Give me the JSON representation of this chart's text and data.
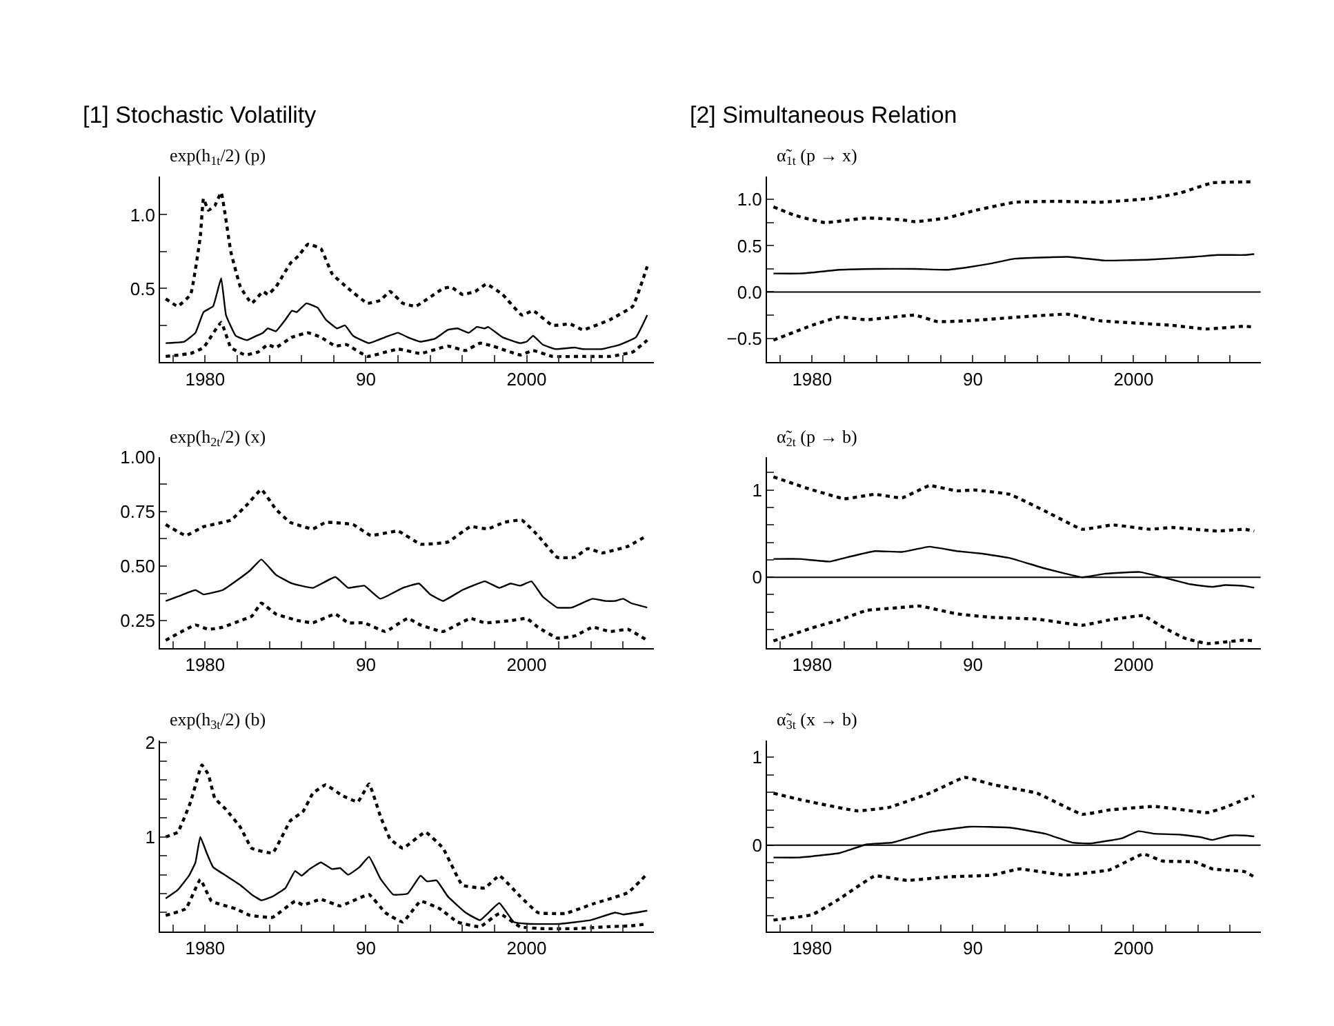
{
  "chart_data": [
    {
      "type": "line",
      "title": "[1] Stochastic Volatility",
      "ylabel": "exp(h$_{1t}$/2) (p)",
      "xlim": [
        1977.2,
        2007.9
      ],
      "xticks": [
        {
          "value": 1978,
          "label": null
        },
        1980,
        {
          "value": 1982,
          "label": null
        },
        {
          "value": 1984,
          "label": null
        },
        {
          "value": 1986,
          "label": null
        },
        {
          "value": 1988,
          "label": null
        },
        {
          "value": 1990,
          "label": "90"
        },
        {
          "value": 1992,
          "label": null
        },
        {
          "value": 1994,
          "label": null
        },
        {
          "value": 1996,
          "label": null
        },
        {
          "value": 1998,
          "label": null
        },
        2000,
        {
          "value": 2002,
          "label": null
        },
        {
          "value": 2004,
          "label": null
        },
        {
          "value": 2006,
          "label": null
        }
      ],
      "ylim": [
        0,
        1.26
      ],
      "yticks": [
        {
          "value": 0.25,
          "label": null
        },
        0.5,
        {
          "value": 0.75,
          "label": null
        },
        {
          "value": 1,
          "label": "1.0"
        }
      ],
      "grid": false,
      "series": [
        {
          "color": "#000000",
          "line_style": "solid",
          "x": [
            1977.55,
            1978.7,
            1979.4,
            1979.9,
            1980.5,
            1981.0,
            1981.3,
            1981.9,
            1982.6,
            1983.2,
            1983.6,
            1983.9,
            1984.4,
            1985.0,
            1985.4,
            1985.7,
            1986.3,
            1987.0,
            1987.5,
            1988.2,
            1988.7,
            1989.2,
            1990.2,
            1991.2,
            1992.0,
            1992.6,
            1993.4,
            1994.3,
            1995.1,
            1995.7,
            1996.4,
            1996.9,
            1997.4,
            1997.6,
            1998.5,
            1999.6,
            2000.0,
            2000.4,
            2001.0,
            2001.8,
            2003.0,
            2003.5,
            2004.7,
            2005.8,
            2006.8,
            2007.5
          ],
          "values": [
            0.13,
            0.14,
            0.2,
            0.34,
            0.38,
            0.57,
            0.32,
            0.18,
            0.15,
            0.18,
            0.2,
            0.23,
            0.21,
            0.29,
            0.35,
            0.34,
            0.4,
            0.37,
            0.29,
            0.23,
            0.25,
            0.18,
            0.13,
            0.17,
            0.2,
            0.17,
            0.14,
            0.16,
            0.22,
            0.23,
            0.2,
            0.24,
            0.23,
            0.24,
            0.17,
            0.13,
            0.14,
            0.18,
            0.12,
            0.09,
            0.1,
            0.09,
            0.09,
            0.12,
            0.17,
            0.32
          ]
        },
        {
          "color": "#000000",
          "line_style": "dotted",
          "x": [
            1977.55,
            1978.3,
            1979.1,
            1979.7,
            1979.9,
            1980.2,
            1980.6,
            1981.0,
            1981.6,
            1982.2,
            1982.9,
            1983.6,
            1983.9,
            1984.4,
            1985.3,
            1985.8,
            1986.4,
            1987.2,
            1987.9,
            1988.8,
            1990.1,
            1990.9,
            1991.5,
            1992.3,
            1993.1,
            1994.8,
            1995.3,
            1996.0,
            1996.8,
            1997.5,
            1998.5,
            1999.7,
            2000.4,
            2001.6,
            2002.7,
            2003.5,
            2005.2,
            2006.6,
            2007.5
          ],
          "values": [
            0.43,
            0.38,
            0.46,
            0.85,
            1.11,
            1.03,
            1.06,
            1.15,
            0.75,
            0.51,
            0.4,
            0.48,
            0.46,
            0.51,
            0.67,
            0.72,
            0.8,
            0.77,
            0.6,
            0.51,
            0.4,
            0.42,
            0.48,
            0.4,
            0.38,
            0.5,
            0.51,
            0.46,
            0.48,
            0.53,
            0.46,
            0.32,
            0.35,
            0.25,
            0.26,
            0.22,
            0.29,
            0.38,
            0.65
          ]
        },
        {
          "color": "#000000",
          "line_style": "dotted",
          "x": [
            1977.55,
            1979.1,
            1979.9,
            1981.0,
            1981.6,
            1982.5,
            1983.3,
            1983.9,
            1984.4,
            1985.4,
            1986.4,
            1987.2,
            1988.1,
            1988.8,
            1990.1,
            1992.0,
            1993.4,
            1995.1,
            1996.2,
            1997.1,
            1997.9,
            1999.6,
            2000.4,
            2001.6,
            2003.5,
            2005.2,
            2006.6,
            2007.5
          ],
          "values": [
            0.04,
            0.06,
            0.1,
            0.27,
            0.1,
            0.05,
            0.07,
            0.12,
            0.1,
            0.17,
            0.2,
            0.17,
            0.11,
            0.12,
            0.04,
            0.09,
            0.06,
            0.11,
            0.08,
            0.13,
            0.11,
            0.05,
            0.08,
            0.04,
            0.04,
            0.04,
            0.07,
            0.15
          ]
        }
      ]
    },
    {
      "type": "line",
      "title": "[2] Simultaneous Relation",
      "ylabel": "α̃$_{1t}$ (p → x)",
      "xlim": [
        1977.2,
        2007.9
      ],
      "xticks": [
        {
          "value": 1978,
          "label": null
        },
        1980,
        {
          "value": 1982,
          "label": null
        },
        {
          "value": 1984,
          "label": null
        },
        {
          "value": 1986,
          "label": null
        },
        {
          "value": 1988,
          "label": null
        },
        {
          "value": 1990,
          "label": "90"
        },
        {
          "value": 1992,
          "label": null
        },
        {
          "value": 1994,
          "label": null
        },
        {
          "value": 1996,
          "label": null
        },
        {
          "value": 1998,
          "label": null
        },
        2000,
        {
          "value": 2002,
          "label": null
        },
        {
          "value": 2004,
          "label": null
        },
        {
          "value": 2006,
          "label": null
        }
      ],
      "ylim": [
        -0.76,
        1.25
      ],
      "yticks": [
        {
          "value": -0.75,
          "label": null
        },
        {
          "value": -0.5,
          "label": "−0.5"
        },
        {
          "value": -0.25,
          "label": null
        },
        {
          "value": 0,
          "label": "0.0"
        },
        {
          "value": 0.25,
          "label": null
        },
        0.5,
        {
          "value": 0.75,
          "label": null
        },
        {
          "value": 1,
          "label": "1.0"
        }
      ],
      "grid": false,
      "ref_lines": [
        {
          "axis": "y",
          "value": 0,
          "color": "#000000"
        }
      ],
      "series": [
        {
          "color": "#000000",
          "line_style": "solid",
          "x": [
            1977.6,
            1979.2,
            1980.0,
            1981.7,
            1983.9,
            1986.4,
            1988.4,
            1989.8,
            1991.2,
            1992.6,
            1995.9,
            1998.2,
            2001.0,
            2003.8,
            2005.2,
            2006.9,
            2007.5
          ],
          "values": [
            0.2,
            0.2,
            0.21,
            0.24,
            0.25,
            0.25,
            0.24,
            0.27,
            0.31,
            0.36,
            0.38,
            0.34,
            0.35,
            0.38,
            0.4,
            0.4,
            0.41
          ]
        },
        {
          "color": "#000000",
          "line_style": "dotted",
          "x": [
            1977.6,
            1978.9,
            1980.8,
            1983.4,
            1985.6,
            1986.4,
            1988.4,
            1990.1,
            1992.6,
            1995.4,
            1997.9,
            2001.0,
            2002.9,
            2004.9,
            2006.9,
            2007.5
          ],
          "values": [
            0.92,
            0.83,
            0.75,
            0.8,
            0.78,
            0.76,
            0.8,
            0.88,
            0.97,
            0.98,
            0.97,
            1.01,
            1.07,
            1.18,
            1.19,
            1.19
          ]
        },
        {
          "color": "#000000",
          "line_style": "dotted",
          "x": [
            1977.6,
            1980.0,
            1981.7,
            1983.4,
            1986.4,
            1987.8,
            1989.8,
            1992.9,
            1995.9,
            1997.9,
            2002.4,
            2004.5,
            2006.9,
            2007.5
          ],
          "values": [
            -0.52,
            -0.36,
            -0.27,
            -0.3,
            -0.25,
            -0.32,
            -0.31,
            -0.27,
            -0.24,
            -0.31,
            -0.36,
            -0.4,
            -0.37,
            -0.38
          ]
        }
      ]
    },
    {
      "type": "line",
      "ylabel": "exp(h$_{2t}$/2) (x)",
      "xlim": [
        1977.2,
        2007.9
      ],
      "xticks": [
        {
          "value": 1978,
          "label": null
        },
        1980,
        {
          "value": 1982,
          "label": null
        },
        {
          "value": 1984,
          "label": null
        },
        {
          "value": 1986,
          "label": null
        },
        {
          "value": 1988,
          "label": null
        },
        {
          "value": 1990,
          "label": "90"
        },
        {
          "value": 1992,
          "label": null
        },
        {
          "value": 1994,
          "label": null
        },
        {
          "value": 1996,
          "label": null
        },
        {
          "value": 1998,
          "label": null
        },
        2000,
        {
          "value": 2002,
          "label": null
        },
        {
          "value": 2004,
          "label": null
        },
        {
          "value": 2006,
          "label": null
        }
      ],
      "ylim": [
        0.125,
        1.0
      ],
      "yticks": [
        0.25,
        {
          "value": 0.375,
          "label": null
        },
        {
          "value": 0.5,
          "label": "0.50"
        },
        {
          "value": 0.625,
          "label": null
        },
        0.75,
        {
          "value": 0.875,
          "label": null
        },
        {
          "value": 1,
          "label": "1.00"
        }
      ],
      "grid": false,
      "series": [
        {
          "color": "#000000",
          "line_style": "solid",
          "x": [
            1977.55,
            1978.3,
            1979.4,
            1979.9,
            1981.1,
            1981.9,
            1982.8,
            1983.5,
            1984.4,
            1985.4,
            1986.7,
            1988.1,
            1988.9,
            1989.9,
            1990.9,
            1992.3,
            1993.3,
            1994.0,
            1994.8,
            1996.0,
            1997.4,
            1998.3,
            1999.0,
            1999.6,
            2000.3,
            2001.0,
            2001.9,
            2002.8,
            2004.1,
            2004.9,
            2005.5,
            2006.0,
            2006.5,
            2007.5
          ],
          "values": [
            0.34,
            0.36,
            0.39,
            0.37,
            0.39,
            0.43,
            0.48,
            0.53,
            0.46,
            0.42,
            0.4,
            0.45,
            0.4,
            0.41,
            0.35,
            0.4,
            0.42,
            0.37,
            0.34,
            0.39,
            0.43,
            0.4,
            0.42,
            0.41,
            0.43,
            0.36,
            0.31,
            0.31,
            0.35,
            0.34,
            0.34,
            0.35,
            0.33,
            0.31
          ]
        },
        {
          "color": "#000000",
          "line_style": "dotted",
          "x": [
            1977.55,
            1978.8,
            1979.9,
            1981.6,
            1982.6,
            1983.5,
            1984.4,
            1985.3,
            1986.7,
            1987.5,
            1989.2,
            1990.3,
            1992.0,
            1993.4,
            1995.1,
            1996.5,
            1997.6,
            1998.6,
            1999.7,
            2000.7,
            2001.9,
            2003.0,
            2003.8,
            2004.7,
            2006.3,
            2007.5
          ],
          "values": [
            0.69,
            0.64,
            0.68,
            0.71,
            0.78,
            0.85,
            0.76,
            0.7,
            0.67,
            0.7,
            0.69,
            0.64,
            0.66,
            0.6,
            0.61,
            0.68,
            0.67,
            0.7,
            0.71,
            0.64,
            0.54,
            0.54,
            0.58,
            0.56,
            0.59,
            0.64
          ]
        },
        {
          "color": "#000000",
          "line_style": "dotted",
          "x": [
            1977.55,
            1979.4,
            1980.2,
            1981.1,
            1982.2,
            1982.9,
            1983.5,
            1984.4,
            1985.8,
            1986.7,
            1988.1,
            1988.9,
            1989.9,
            1991.2,
            1992.6,
            1993.4,
            1994.8,
            1996.5,
            1997.4,
            1999.0,
            2000.0,
            2000.7,
            2001.9,
            2003.0,
            2004.1,
            2005.2,
            2006.3,
            2007.5
          ],
          "values": [
            0.16,
            0.23,
            0.21,
            0.22,
            0.25,
            0.27,
            0.33,
            0.28,
            0.25,
            0.24,
            0.28,
            0.24,
            0.24,
            0.2,
            0.26,
            0.23,
            0.2,
            0.26,
            0.24,
            0.25,
            0.26,
            0.22,
            0.17,
            0.18,
            0.22,
            0.2,
            0.21,
            0.16
          ]
        }
      ]
    },
    {
      "type": "line",
      "ylabel": "α̃$_{2t}$ (p → b)",
      "xlim": [
        1977.2,
        2007.9
      ],
      "xticks": [
        {
          "value": 1978,
          "label": null
        },
        1980,
        {
          "value": 1982,
          "label": null
        },
        {
          "value": 1984,
          "label": null
        },
        {
          "value": 1986,
          "label": null
        },
        {
          "value": 1988,
          "label": null
        },
        {
          "value": 1990,
          "label": "90"
        },
        {
          "value": 1992,
          "label": null
        },
        {
          "value": 1994,
          "label": null
        },
        {
          "value": 1996,
          "label": null
        },
        {
          "value": 1998,
          "label": null
        },
        2000,
        {
          "value": 2002,
          "label": null
        },
        {
          "value": 2004,
          "label": null
        },
        {
          "value": 2006,
          "label": null
        }
      ],
      "ylim": [
        -0.81,
        1.38
      ],
      "yticks": [
        {
          "value": -0.8,
          "label": null
        },
        {
          "value": -0.6,
          "label": null
        },
        {
          "value": -0.4,
          "label": null
        },
        {
          "value": -0.2,
          "label": null
        },
        0,
        {
          "value": 0.2,
          "label": null
        },
        {
          "value": 0.4,
          "label": null
        },
        {
          "value": 0.6,
          "label": null
        },
        {
          "value": 0.8,
          "label": null
        },
        1,
        {
          "value": 1.2,
          "label": null
        }
      ],
      "grid": false,
      "ref_lines": [
        {
          "axis": "y",
          "value": 0,
          "color": "#000000"
        }
      ],
      "series": [
        {
          "color": "#000000",
          "line_style": "solid",
          "x": [
            1977.6,
            1979.2,
            1981.1,
            1982.2,
            1983.9,
            1985.6,
            1987.3,
            1989.0,
            1990.6,
            1992.3,
            1994.5,
            1996.8,
            1998.2,
            2000.4,
            2001.8,
            2003.5,
            2004.9,
            2005.7,
            2006.9,
            2007.5
          ],
          "values": [
            0.21,
            0.21,
            0.18,
            0.23,
            0.3,
            0.29,
            0.35,
            0.3,
            0.27,
            0.22,
            0.1,
            0.0,
            0.04,
            0.06,
            0.0,
            -0.08,
            -0.11,
            -0.09,
            -0.1,
            -0.12
          ]
        },
        {
          "color": "#000000",
          "line_style": "dotted",
          "x": [
            1977.6,
            1979.7,
            1982.0,
            1983.9,
            1985.6,
            1987.3,
            1989.0,
            1990.1,
            1992.3,
            1994.8,
            1996.8,
            1998.7,
            2001.0,
            2002.4,
            2005.2,
            2006.9,
            2007.5
          ],
          "values": [
            1.15,
            1.02,
            0.9,
            0.95,
            0.91,
            1.05,
            0.99,
            1.0,
            0.95,
            0.73,
            0.55,
            0.6,
            0.55,
            0.57,
            0.53,
            0.55,
            0.53
          ]
        },
        {
          "color": "#000000",
          "line_style": "dotted",
          "x": [
            1977.6,
            1980.0,
            1981.7,
            1983.4,
            1985.3,
            1986.7,
            1989.0,
            1991.2,
            1994.0,
            1996.8,
            1998.5,
            2000.6,
            2001.8,
            2003.2,
            2004.6,
            2006.9,
            2007.5
          ],
          "values": [
            -0.73,
            -0.58,
            -0.49,
            -0.38,
            -0.35,
            -0.33,
            -0.42,
            -0.46,
            -0.48,
            -0.55,
            -0.49,
            -0.44,
            -0.57,
            -0.7,
            -0.76,
            -0.72,
            -0.73
          ]
        }
      ]
    },
    {
      "type": "line",
      "ylabel": "exp(h$_{3t}$/2) (b)",
      "xlim": [
        1977.2,
        2007.9
      ],
      "xticks": [
        {
          "value": 1978,
          "label": null
        },
        1980,
        {
          "value": 1982,
          "label": null
        },
        {
          "value": 1984,
          "label": null
        },
        {
          "value": 1986,
          "label": null
        },
        {
          "value": 1988,
          "label": null
        },
        {
          "value": 1990,
          "label": "90"
        },
        {
          "value": 1992,
          "label": null
        },
        {
          "value": 1994,
          "label": null
        },
        {
          "value": 1996,
          "label": null
        },
        {
          "value": 1998,
          "label": null
        },
        2000,
        {
          "value": 2002,
          "label": null
        },
        {
          "value": 2004,
          "label": null
        },
        {
          "value": 2006,
          "label": null
        }
      ],
      "ylim": [
        0,
        2.02
      ],
      "yticks": [
        {
          "value": 0.2,
          "label": null
        },
        {
          "value": 0.4,
          "label": null
        },
        {
          "value": 0.6,
          "label": null
        },
        {
          "value": 0.8,
          "label": null
        },
        1,
        {
          "value": 1.2,
          "label": null
        },
        {
          "value": 1.4,
          "label": null
        },
        {
          "value": 1.6,
          "label": null
        },
        {
          "value": 1.8,
          "label": null
        },
        2
      ],
      "grid": false,
      "series": [
        {
          "color": "#000000",
          "line_style": "solid",
          "x": [
            1977.55,
            1978.3,
            1979.0,
            1979.4,
            1979.7,
            1980.1,
            1980.5,
            1981.3,
            1982.2,
            1982.9,
            1983.5,
            1984.2,
            1985.0,
            1985.6,
            1986.0,
            1986.5,
            1987.2,
            1987.9,
            1988.4,
            1988.9,
            1989.6,
            1990.2,
            1990.9,
            1991.7,
            1992.6,
            1993.4,
            1993.8,
            1994.4,
            1995.1,
            1996.2,
            1997.1,
            1998.3,
            1999.2,
            2000.2,
            2002.0,
            2004.0,
            2005.5,
            2006.0,
            2007.5
          ],
          "values": [
            0.35,
            0.44,
            0.59,
            0.73,
            1.0,
            0.83,
            0.68,
            0.59,
            0.49,
            0.39,
            0.33,
            0.37,
            0.46,
            0.64,
            0.59,
            0.66,
            0.73,
            0.66,
            0.67,
            0.6,
            0.68,
            0.79,
            0.56,
            0.39,
            0.4,
            0.59,
            0.53,
            0.54,
            0.37,
            0.2,
            0.12,
            0.3,
            0.1,
            0.08,
            0.08,
            0.12,
            0.2,
            0.18,
            0.22
          ]
        },
        {
          "color": "#000000",
          "line_style": "dotted",
          "x": [
            1977.55,
            1978.3,
            1979.1,
            1979.8,
            1980.2,
            1980.6,
            1981.3,
            1982.2,
            1982.9,
            1984.2,
            1985.3,
            1986.1,
            1986.7,
            1987.5,
            1988.5,
            1989.5,
            1990.2,
            1990.9,
            1991.5,
            1992.3,
            1993.7,
            1994.8,
            1996.0,
            1997.4,
            1998.3,
            1999.6,
            2000.7,
            2002.4,
            2004.1,
            2006.3,
            2007.5
          ],
          "values": [
            1.0,
            1.05,
            1.37,
            1.76,
            1.66,
            1.41,
            1.29,
            1.1,
            0.88,
            0.83,
            1.17,
            1.27,
            1.46,
            1.55,
            1.44,
            1.37,
            1.56,
            1.22,
            0.98,
            0.88,
            1.05,
            0.88,
            0.49,
            0.46,
            0.59,
            0.37,
            0.2,
            0.19,
            0.29,
            0.41,
            0.61
          ]
        },
        {
          "color": "#000000",
          "line_style": "dotted",
          "x": [
            1977.55,
            1978.8,
            1979.7,
            1980.4,
            1981.9,
            1982.8,
            1984.2,
            1985.6,
            1986.1,
            1987.2,
            1988.4,
            1990.2,
            1991.2,
            1992.3,
            1993.4,
            1994.6,
            1995.7,
            1997.1,
            1998.3,
            1999.6,
            2001.0,
            2003.0,
            2005.0,
            2006.5,
            2007.5
          ],
          "values": [
            0.17,
            0.24,
            0.55,
            0.32,
            0.24,
            0.17,
            0.15,
            0.32,
            0.28,
            0.34,
            0.27,
            0.39,
            0.2,
            0.1,
            0.32,
            0.24,
            0.1,
            0.05,
            0.19,
            0.05,
            0.03,
            0.03,
            0.05,
            0.06,
            0.08
          ]
        }
      ]
    },
    {
      "type": "line",
      "ylabel": "α̃$_{3t}$ (x → b)",
      "xlim": [
        1977.2,
        2007.9
      ],
      "xticks": [
        {
          "value": 1978,
          "label": null
        },
        1980,
        {
          "value": 1982,
          "label": null
        },
        {
          "value": 1984,
          "label": null
        },
        {
          "value": 1986,
          "label": null
        },
        {
          "value": 1988,
          "label": null
        },
        {
          "value": 1990,
          "label": "90"
        },
        {
          "value": 1992,
          "label": null
        },
        {
          "value": 1994,
          "label": null
        },
        {
          "value": 1996,
          "label": null
        },
        {
          "value": 1998,
          "label": null
        },
        2000,
        {
          "value": 2002,
          "label": null
        },
        {
          "value": 2004,
          "label": null
        },
        {
          "value": 2006,
          "label": null
        }
      ],
      "ylim": [
        -0.98,
        1.19
      ],
      "yticks": [
        {
          "value": -0.8,
          "label": null
        },
        {
          "value": -0.6,
          "label": null
        },
        {
          "value": -0.4,
          "label": null
        },
        {
          "value": -0.2,
          "label": null
        },
        0,
        {
          "value": 0.2,
          "label": null
        },
        {
          "value": 0.4,
          "label": null
        },
        {
          "value": 0.6,
          "label": null
        },
        {
          "value": 0.8,
          "label": null
        },
        1
      ],
      "grid": false,
      "ref_lines": [
        {
          "axis": "y",
          "value": 0,
          "color": "#000000"
        }
      ],
      "series": [
        {
          "color": "#000000",
          "line_style": "solid",
          "x": [
            1977.6,
            1979.2,
            1981.7,
            1983.4,
            1985.0,
            1987.3,
            1989.8,
            1992.3,
            1994.5,
            1996.2,
            1997.3,
            1999.3,
            2000.3,
            2001.3,
            2002.9,
            2004.2,
            2004.9,
            2006.0,
            2006.9,
            2007.5
          ],
          "values": [
            -0.14,
            -0.14,
            -0.09,
            0.01,
            0.03,
            0.15,
            0.21,
            0.2,
            0.13,
            0.03,
            0.02,
            0.08,
            0.16,
            0.13,
            0.12,
            0.09,
            0.06,
            0.11,
            0.11,
            0.1
          ]
        },
        {
          "color": "#000000",
          "line_style": "dotted",
          "x": [
            1977.6,
            1979.2,
            1982.8,
            1984.8,
            1987.3,
            1989.5,
            1991.2,
            1994.0,
            1996.8,
            1998.5,
            2001.3,
            2004.6,
            2005.7,
            2006.9,
            2007.5
          ],
          "values": [
            0.59,
            0.52,
            0.39,
            0.43,
            0.59,
            0.77,
            0.69,
            0.59,
            0.35,
            0.4,
            0.44,
            0.37,
            0.43,
            0.52,
            0.56
          ]
        },
        {
          "color": "#000000",
          "line_style": "dotted",
          "x": [
            1977.6,
            1980.0,
            1981.7,
            1983.9,
            1985.9,
            1988.4,
            1991.2,
            1992.9,
            1995.7,
            1998.5,
            2000.6,
            2001.8,
            2003.8,
            2004.9,
            2006.9,
            2007.5
          ],
          "values": [
            -0.85,
            -0.79,
            -0.61,
            -0.35,
            -0.4,
            -0.36,
            -0.34,
            -0.27,
            -0.34,
            -0.28,
            -0.1,
            -0.18,
            -0.19,
            -0.27,
            -0.3,
            -0.36
          ]
        }
      ]
    }
  ]
}
